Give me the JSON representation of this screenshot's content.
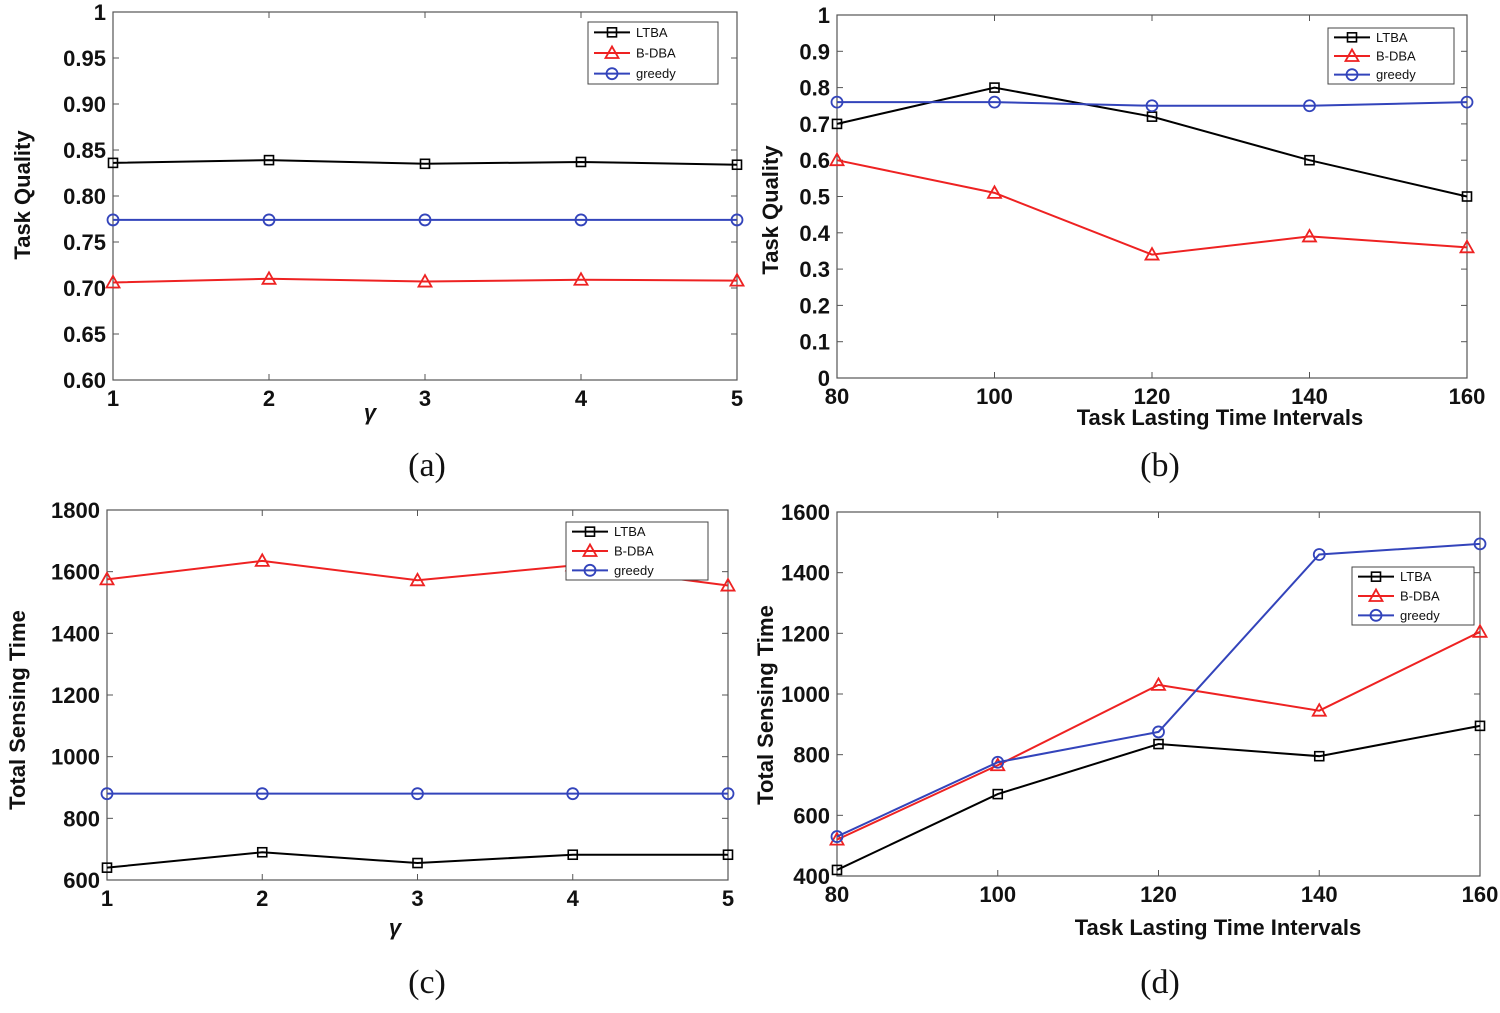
{
  "chart_data": [
    {
      "id": "a",
      "type": "line",
      "caption": "(a)",
      "xlabel": "γ",
      "ylabel": "Task Quality",
      "x": [
        1,
        2,
        3,
        4,
        5
      ],
      "xlim": [
        1,
        5
      ],
      "ylim": [
        0.6,
        1.0
      ],
      "xticks": [
        "1",
        "2",
        "3",
        "4",
        "5"
      ],
      "yticks": [
        0.6,
        0.65,
        0.7,
        0.75,
        0.8,
        0.85,
        0.9,
        0.95,
        1.0
      ],
      "ytick_labels": [
        "0.60",
        "0.65",
        "0.70",
        "0.75",
        "0.80",
        "0.85",
        "0.90",
        "0.95",
        "1"
      ],
      "legend_position": "top-right",
      "series": [
        {
          "name": "LTBA",
          "color": "#000000",
          "marker": "square",
          "values": [
            0.836,
            0.839,
            0.835,
            0.837,
            0.834
          ]
        },
        {
          "name": "B-DBA",
          "color": "#ee2222",
          "marker": "triangle",
          "values": [
            0.706,
            0.71,
            0.707,
            0.709,
            0.708
          ]
        },
        {
          "name": "greedy",
          "color": "#3344bb",
          "marker": "circle",
          "values": [
            0.774,
            0.774,
            0.774,
            0.774,
            0.774
          ]
        }
      ]
    },
    {
      "id": "b",
      "type": "line",
      "caption": "(b)",
      "xlabel": "Task Lasting Time Intervals",
      "ylabel": "Task Quality",
      "x": [
        80,
        100,
        120,
        140,
        160
      ],
      "xlim": [
        80,
        160
      ],
      "ylim": [
        0,
        1
      ],
      "xticks": [
        "80",
        "100",
        "120",
        "140",
        "160"
      ],
      "yticks": [
        0,
        0.1,
        0.2,
        0.3,
        0.4,
        0.5,
        0.6,
        0.7,
        0.8,
        0.9,
        1
      ],
      "ytick_labels": [
        "0",
        "0.1",
        "0.2",
        "0.3",
        "0.4",
        "0.5",
        "0.6",
        "0.7",
        "0.8",
        "0.9",
        "1"
      ],
      "legend_position": "top-right",
      "series": [
        {
          "name": "LTBA",
          "color": "#000000",
          "marker": "square",
          "values": [
            0.7,
            0.8,
            0.72,
            0.6,
            0.5
          ]
        },
        {
          "name": "B-DBA",
          "color": "#ee2222",
          "marker": "triangle",
          "values": [
            0.6,
            0.51,
            0.34,
            0.39,
            0.36
          ]
        },
        {
          "name": "greedy",
          "color": "#3344bb",
          "marker": "circle",
          "values": [
            0.76,
            0.76,
            0.75,
            0.75,
            0.76
          ]
        }
      ]
    },
    {
      "id": "c",
      "type": "line",
      "caption": "(c)",
      "xlabel": "γ",
      "ylabel": "Total Sensing Time",
      "x": [
        1,
        2,
        3,
        4,
        5
      ],
      "xlim": [
        1,
        5
      ],
      "ylim": [
        600,
        1800
      ],
      "xticks": [
        "1",
        "2",
        "3",
        "4",
        "5"
      ],
      "yticks": [
        600,
        800,
        1000,
        1200,
        1400,
        1600,
        1800
      ],
      "ytick_labels": [
        "600",
        "800",
        "1000",
        "1200",
        "1400",
        "1600",
        "1800"
      ],
      "legend_position": "top-right",
      "series": [
        {
          "name": "LTBA",
          "color": "#000000",
          "marker": "square",
          "values": [
            640,
            690,
            655,
            682,
            682
          ]
        },
        {
          "name": "B-DBA",
          "color": "#ee2222",
          "marker": "triangle",
          "values": [
            1575,
            1635,
            1572,
            1620,
            1555
          ]
        },
        {
          "name": "greedy",
          "color": "#3344bb",
          "marker": "circle",
          "values": [
            880,
            880,
            880,
            880,
            880
          ]
        }
      ]
    },
    {
      "id": "d",
      "type": "line",
      "caption": "(d)",
      "xlabel": "Task Lasting Time Intervals",
      "ylabel": "Total Sensing Time",
      "x": [
        80,
        100,
        120,
        140,
        160
      ],
      "xlim": [
        80,
        160
      ],
      "ylim": [
        400,
        1600
      ],
      "xticks": [
        "80",
        "100",
        "120",
        "140",
        "160"
      ],
      "yticks": [
        400,
        600,
        800,
        1000,
        1200,
        1400,
        1600
      ],
      "ytick_labels": [
        "400",
        "600",
        "800",
        "1000",
        "1200",
        "1400",
        "1600"
      ],
      "legend_position": "right",
      "series": [
        {
          "name": "LTBA",
          "color": "#000000",
          "marker": "square",
          "values": [
            420,
            670,
            835,
            795,
            895
          ]
        },
        {
          "name": "B-DBA",
          "color": "#ee2222",
          "marker": "triangle",
          "values": [
            520,
            765,
            1030,
            945,
            1205
          ]
        },
        {
          "name": "greedy",
          "color": "#3344bb",
          "marker": "circle",
          "values": [
            530,
            775,
            875,
            1460,
            1495
          ]
        }
      ]
    }
  ]
}
